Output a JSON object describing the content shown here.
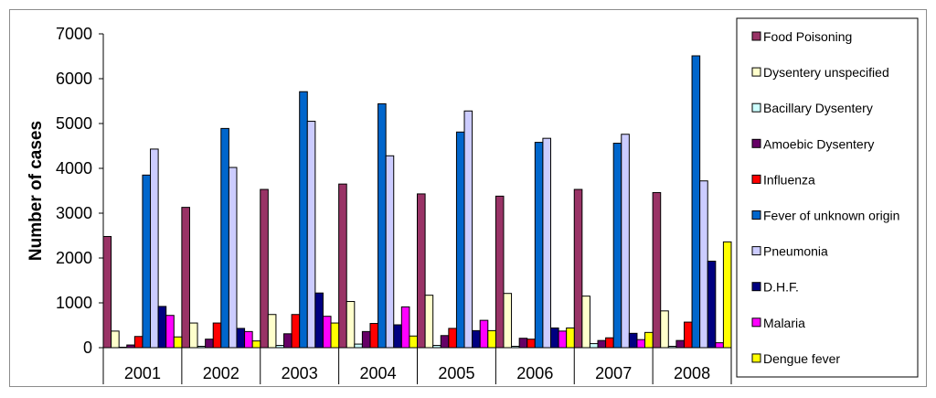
{
  "chart_data": {
    "type": "bar",
    "title": "",
    "xlabel": "",
    "ylabel": "Number of cases",
    "ylim": [
      0,
      7000
    ],
    "yticks": [
      0,
      1000,
      2000,
      3000,
      4000,
      5000,
      6000,
      7000
    ],
    "grid": false,
    "legend_position": "right",
    "categories": [
      "2001",
      "2002",
      "2003",
      "2004",
      "2005",
      "2006",
      "2007",
      "2008"
    ],
    "series": [
      {
        "name": "Food Poisoning",
        "color": "#993366",
        "values": [
          2480,
          3130,
          3530,
          3650,
          3430,
          3380,
          3530,
          3460
        ]
      },
      {
        "name": "Dysentery unspecified",
        "color": "#ffffcc",
        "values": [
          370,
          550,
          740,
          1030,
          1170,
          1210,
          1150,
          820
        ]
      },
      {
        "name": "Bacillary Dysentery",
        "color": "#ccffff",
        "values": [
          10,
          30,
          50,
          80,
          50,
          30,
          90,
          30
        ]
      },
      {
        "name": "Amoebic Dysentery",
        "color": "#660066",
        "values": [
          60,
          190,
          310,
          360,
          270,
          210,
          160,
          160
        ]
      },
      {
        "name": "Influenza",
        "color": "#ff0000",
        "values": [
          250,
          550,
          740,
          540,
          430,
          190,
          220,
          570
        ]
      },
      {
        "name": "Fever of unknown origin",
        "color": "#0066cc",
        "values": [
          3850,
          4890,
          5710,
          5440,
          4810,
          4580,
          4560,
          6510
        ]
      },
      {
        "name": "Pneumonia",
        "color": "#ccccff",
        "values": [
          4430,
          4020,
          5050,
          4280,
          5280,
          4670,
          4760,
          3720
        ]
      },
      {
        "name": "D.H.F.",
        "color": "#000080",
        "values": [
          920,
          430,
          1220,
          510,
          380,
          440,
          320,
          1930
        ]
      },
      {
        "name": "Malaria",
        "color": "#ff00ff",
        "values": [
          720,
          360,
          700,
          910,
          610,
          370,
          180,
          110
        ]
      },
      {
        "name": "Dengue fever",
        "color": "#ffff00",
        "values": [
          240,
          150,
          550,
          260,
          380,
          440,
          340,
          2360
        ]
      }
    ]
  }
}
